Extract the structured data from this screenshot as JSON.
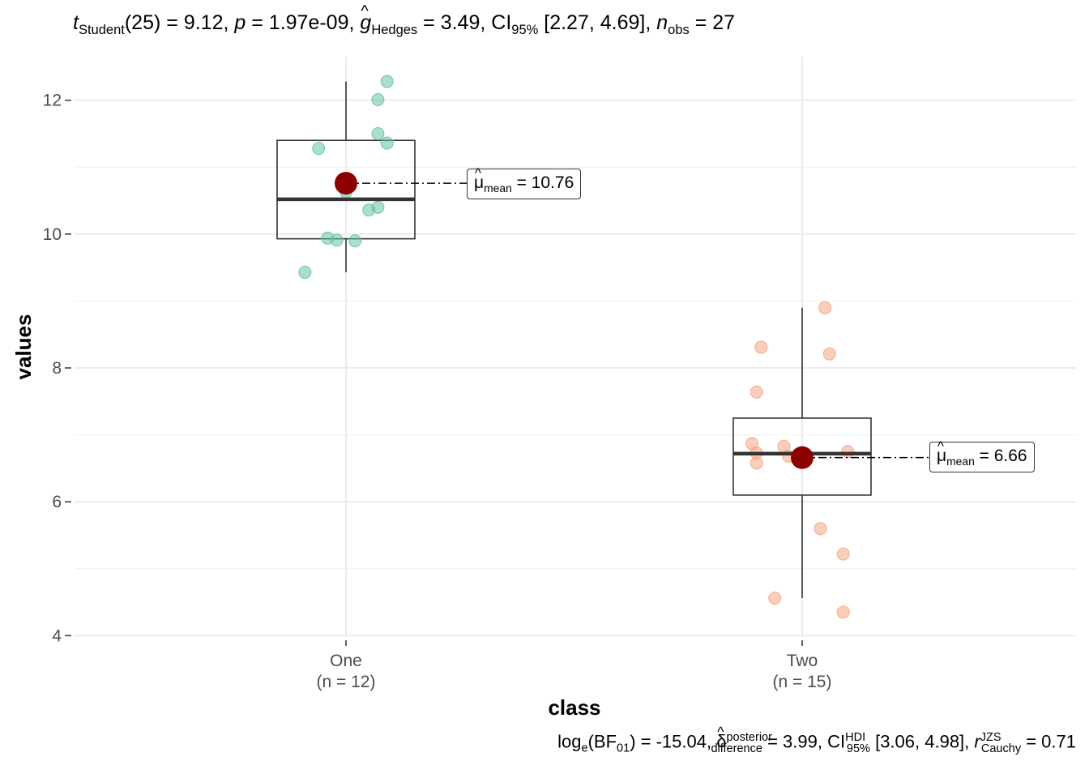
{
  "subtitle": {
    "t_symbol": "t",
    "t_sub": "Student",
    "t_df": "(25)",
    "t_value": "9.12",
    "p_symbol": "p",
    "p_value": "1.97e-09",
    "g_symbol": "g",
    "g_sub": "Hedges",
    "g_value": "3.49",
    "ci_symbol": "CI",
    "ci_sub": "95%",
    "ci_value": "[2.27, 4.69]",
    "n_symbol": "n",
    "n_sub": "obs",
    "n_value": "27"
  },
  "caption": {
    "log_symbol": "log",
    "log_sub": "e",
    "bf_symbol": "BF",
    "bf_sub": "01",
    "bf_value": "-15.04",
    "delta_symbol": "δ",
    "delta_sup": "posterior",
    "delta_sub": "difference",
    "delta_value": "3.99",
    "ci_symbol": "CI",
    "ci_sup": "HDI",
    "ci_sub": "95%",
    "ci_value": "[3.06, 4.98]",
    "r_symbol": "r",
    "r_sup": "JZS",
    "r_sub": "Cauchy",
    "r_value": "0.71"
  },
  "chart_data": {
    "type": "box",
    "xlabel": "class",
    "ylabel": "values",
    "ylim": [
      3.98,
      12.65
    ],
    "yticks": [
      4,
      6,
      8,
      10,
      12
    ],
    "grid": true,
    "categories": [
      {
        "name": "One",
        "n_label": "(n = 12)",
        "color": "#66c2a5",
        "box": {
          "lower_whisker": 9.43,
          "q1": 9.93,
          "median": 10.52,
          "q3": 11.4,
          "upper_whisker": 12.28
        },
        "mean": 10.76,
        "mean_label": {
          "symbol": "μ",
          "sub": "mean",
          "value": "10.76"
        },
        "points": [
          {
            "x": 0.91,
            "y": 9.43
          },
          {
            "x": 0.94,
            "y": 11.28
          },
          {
            "x": 0.96,
            "y": 9.94
          },
          {
            "x": 0.98,
            "y": 9.91
          },
          {
            "x": 1.0,
            "y": 10.63
          },
          {
            "x": 1.02,
            "y": 9.9
          },
          {
            "x": 1.05,
            "y": 10.36
          },
          {
            "x": 1.07,
            "y": 10.4
          },
          {
            "x": 1.07,
            "y": 11.5
          },
          {
            "x": 1.07,
            "y": 12.01
          },
          {
            "x": 1.09,
            "y": 11.36
          },
          {
            "x": 1.09,
            "y": 12.28
          }
        ]
      },
      {
        "name": "Two",
        "n_label": "(n = 15)",
        "color": "#f4a582",
        "box": {
          "lower_whisker": 4.56,
          "q1": 6.1,
          "median": 6.72,
          "q3": 7.25,
          "upper_whisker": 8.9
        },
        "mean": 6.66,
        "mean_label": {
          "symbol": "μ",
          "sub": "mean",
          "value": "6.66"
        },
        "points": [
          {
            "x": 1.89,
            "y": 6.87
          },
          {
            "x": 1.9,
            "y": 6.58
          },
          {
            "x": 1.9,
            "y": 6.73
          },
          {
            "x": 1.9,
            "y": 7.64
          },
          {
            "x": 1.91,
            "y": 8.31
          },
          {
            "x": 1.94,
            "y": 4.56
          },
          {
            "x": 1.96,
            "y": 6.83
          },
          {
            "x": 1.97,
            "y": 6.68
          },
          {
            "x": 2.04,
            "y": 5.6
          },
          {
            "x": 2.05,
            "y": 8.9
          },
          {
            "x": 2.06,
            "y": 8.21
          },
          {
            "x": 2.09,
            "y": 5.22
          },
          {
            "x": 2.09,
            "y": 4.35
          },
          {
            "x": 2.1,
            "y": 6.75
          },
          {
            "x": 2.0,
            "y": 6.66
          }
        ]
      }
    ],
    "mean_color": "#8b0000"
  }
}
